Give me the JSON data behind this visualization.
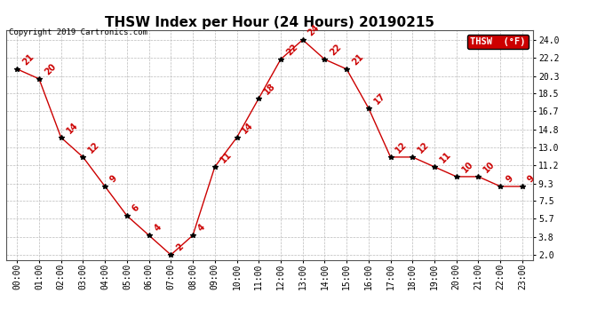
{
  "title": "THSW Index per Hour (24 Hours) 20190215",
  "copyright": "Copyright 2019 Cartronics.com",
  "legend_label": "THSW  (°F)",
  "hours": [
    0,
    1,
    2,
    3,
    4,
    5,
    6,
    7,
    8,
    9,
    10,
    11,
    12,
    13,
    14,
    15,
    16,
    17,
    18,
    19,
    20,
    21,
    22,
    23
  ],
  "values": [
    21,
    20,
    14,
    12,
    9,
    6,
    4,
    2,
    4,
    11,
    14,
    18,
    22,
    24,
    22,
    21,
    17,
    12,
    12,
    11,
    10,
    10,
    9,
    9
  ],
  "hour_labels": [
    "00:00",
    "01:00",
    "02:00",
    "03:00",
    "04:00",
    "05:00",
    "06:00",
    "07:00",
    "08:00",
    "09:00",
    "10:00",
    "11:00",
    "12:00",
    "13:00",
    "14:00",
    "15:00",
    "16:00",
    "17:00",
    "18:00",
    "19:00",
    "20:00",
    "21:00",
    "22:00",
    "23:00"
  ],
  "yticks": [
    2.0,
    3.8,
    5.7,
    7.5,
    9.3,
    11.2,
    13.0,
    14.8,
    16.7,
    18.5,
    20.3,
    22.2,
    24.0
  ],
  "ytick_labels": [
    "2.0",
    "3.8",
    "5.7",
    "7.5",
    "9.3",
    "11.2",
    "13.0",
    "14.8",
    "16.7",
    "18.5",
    "20.3",
    "22.2",
    "24.0"
  ],
  "ylim": [
    1.5,
    25.0
  ],
  "xlim": [
    -0.5,
    23.5
  ],
  "line_color": "#cc0000",
  "marker_color": "#000000",
  "label_color": "#cc0000",
  "bg_color": "#ffffff",
  "grid_color": "#bbbbbb",
  "legend_bg": "#cc0000",
  "legend_text_color": "#ffffff",
  "title_fontsize": 11,
  "tick_fontsize": 7,
  "label_fontsize": 7,
  "copyright_fontsize": 6.5
}
